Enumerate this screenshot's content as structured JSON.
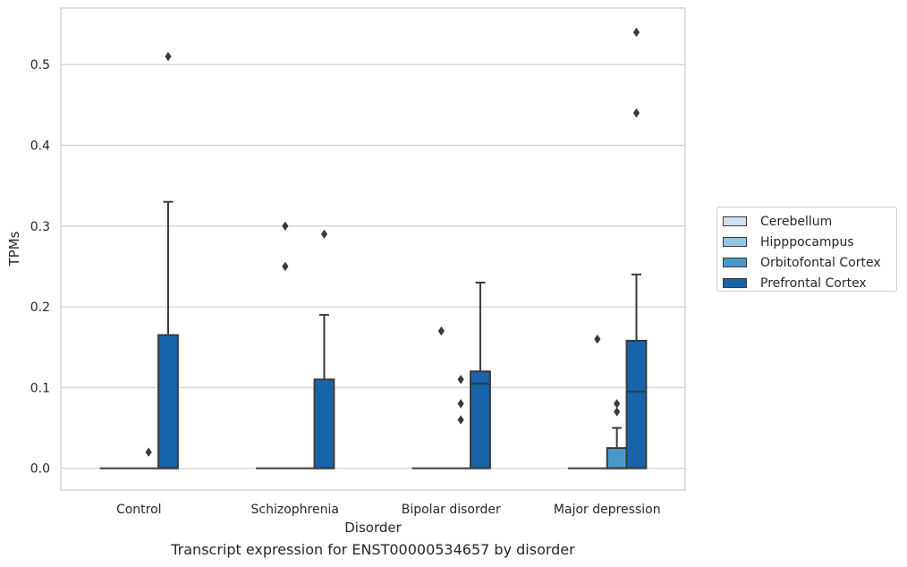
{
  "chart_data": {
    "type": "boxplot",
    "title": "",
    "caption": "Transcript expression for ENST00000534657 by disorder",
    "xlabel": "Disorder",
    "ylabel": "TPMs",
    "categories": [
      "Control",
      "Schizophrenia",
      "Bipolar disorder",
      "Major depression"
    ],
    "ylim": [
      -0.027,
      0.57
    ],
    "yticks": [
      0.0,
      0.1,
      0.2,
      0.3,
      0.4,
      0.5
    ],
    "ytick_labels": [
      "0.0",
      "0.1",
      "0.2",
      "0.3",
      "0.4",
      "0.5"
    ],
    "grid": "horizontal",
    "legend_position": "right",
    "series": [
      {
        "name": "Cerebellum",
        "color": "#d0e1f2",
        "boxes": [
          {
            "category": "Control",
            "whisker_low": 0,
            "q1": 0,
            "median": 0,
            "q3": 0,
            "whisker_high": 0,
            "outliers": []
          },
          {
            "category": "Schizophrenia",
            "whisker_low": 0,
            "q1": 0,
            "median": 0,
            "q3": 0,
            "whisker_high": 0,
            "outliers": []
          },
          {
            "category": "Bipolar disorder",
            "whisker_low": 0,
            "q1": 0,
            "median": 0,
            "q3": 0,
            "whisker_high": 0,
            "outliers": []
          },
          {
            "category": "Major depression",
            "whisker_low": 0,
            "q1": 0,
            "median": 0,
            "q3": 0,
            "whisker_high": 0,
            "outliers": []
          }
        ]
      },
      {
        "name": "Hipppocampus",
        "color": "#94c4df",
        "boxes": [
          {
            "category": "Control",
            "whisker_low": 0,
            "q1": 0,
            "median": 0,
            "q3": 0,
            "whisker_high": 0,
            "outliers": []
          },
          {
            "category": "Schizophrenia",
            "whisker_low": 0,
            "q1": 0,
            "median": 0,
            "q3": 0,
            "whisker_high": 0,
            "outliers": [
              0.25,
              0.3
            ]
          },
          {
            "category": "Bipolar disorder",
            "whisker_low": 0,
            "q1": 0,
            "median": 0,
            "q3": 0,
            "whisker_high": 0,
            "outliers": [
              0.17
            ]
          },
          {
            "category": "Major depression",
            "whisker_low": 0,
            "q1": 0,
            "median": 0,
            "q3": 0,
            "whisker_high": 0,
            "outliers": [
              0.16
            ]
          }
        ]
      },
      {
        "name": "Orbitofontal Cortex",
        "color": "#4a98c9",
        "boxes": [
          {
            "category": "Control",
            "whisker_low": 0,
            "q1": 0,
            "median": 0,
            "q3": 0,
            "whisker_high": 0,
            "outliers": [
              0.02
            ]
          },
          {
            "category": "Schizophrenia",
            "whisker_low": 0,
            "q1": 0,
            "median": 0,
            "q3": 0,
            "whisker_high": 0,
            "outliers": []
          },
          {
            "category": "Bipolar disorder",
            "whisker_low": 0,
            "q1": 0,
            "median": 0,
            "q3": 0,
            "whisker_high": 0,
            "outliers": [
              0.06,
              0.08,
              0.11
            ]
          },
          {
            "category": "Major depression",
            "whisker_low": 0,
            "q1": 0,
            "median": 0,
            "q3": 0.025,
            "whisker_high": 0.05,
            "outliers": [
              0.07,
              0.08
            ]
          }
        ]
      },
      {
        "name": "Prefrontal Cortex",
        "color": "#1764ab",
        "boxes": [
          {
            "category": "Control",
            "whisker_low": 0,
            "q1": 0,
            "median": 0,
            "q3": 0.165,
            "whisker_high": 0.33,
            "outliers": [
              0.51
            ]
          },
          {
            "category": "Schizophrenia",
            "whisker_low": 0,
            "q1": 0,
            "median": 0,
            "q3": 0.11,
            "whisker_high": 0.19,
            "outliers": [
              0.29
            ]
          },
          {
            "category": "Bipolar disorder",
            "whisker_low": 0,
            "q1": 0,
            "median": 0.105,
            "q3": 0.12,
            "whisker_high": 0.23,
            "outliers": []
          },
          {
            "category": "Major depression",
            "whisker_low": 0,
            "q1": 0,
            "median": 0.095,
            "q3": 0.158,
            "whisker_high": 0.24,
            "outliers": [
              0.44,
              0.54
            ]
          }
        ]
      }
    ]
  }
}
